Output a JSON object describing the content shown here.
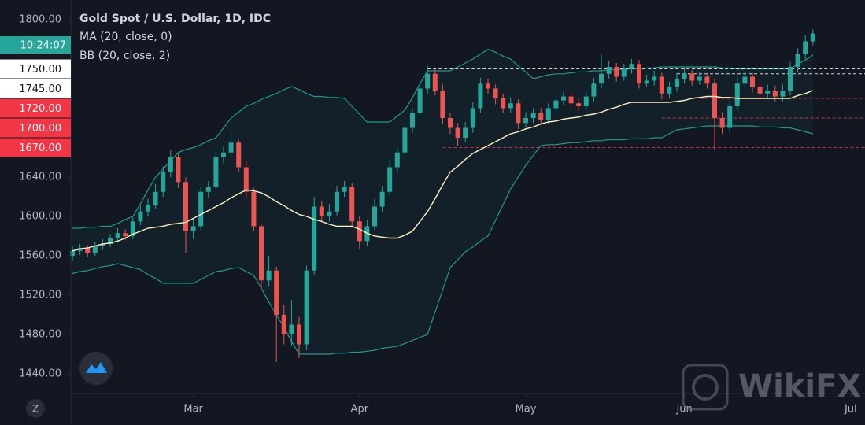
{
  "chart_data": {
    "type": "candlestick",
    "title": "Gold Spot / U.S. Dollar, 1D, IDC",
    "current_time": "10:24:07",
    "watermark": "WikiFX",
    "axis_corner": "Z",
    "up_color": "#26a69a",
    "down_color": "#ef5350",
    "ylim": [
      1420,
      1820
    ],
    "yticks": [
      {
        "value": 1440,
        "label": "1440.00"
      },
      {
        "value": 1480,
        "label": "1480.00"
      },
      {
        "value": 1520,
        "label": "1520.00"
      },
      {
        "value": 1560,
        "label": "1560.00"
      },
      {
        "value": 1600,
        "label": "1600.00"
      },
      {
        "value": 1640,
        "label": "1640.00"
      },
      {
        "value": 1800,
        "label": "1800.00"
      }
    ],
    "price_lines": [
      {
        "value": 1750,
        "label": "1750.00",
        "color": "#ffffff"
      },
      {
        "value": 1745,
        "label": "1745.00",
        "color": "#ffffff"
      },
      {
        "value": 1720,
        "label": "1720.00",
        "color": "#f23645"
      },
      {
        "value": 1700,
        "label": "1700.00",
        "color": "#f23645"
      },
      {
        "value": 1670,
        "label": "1670.00",
        "color": "#f23645"
      }
    ],
    "categories": [
      null,
      null,
      null,
      null,
      null,
      null,
      null,
      null,
      null,
      null,
      null,
      null,
      null,
      null,
      null,
      null,
      "Mar",
      null,
      null,
      null,
      null,
      null,
      null,
      null,
      null,
      null,
      null,
      null,
      null,
      null,
      null,
      null,
      null,
      null,
      null,
      null,
      null,
      null,
      "Apr",
      null,
      null,
      null,
      null,
      null,
      null,
      null,
      null,
      null,
      null,
      null,
      null,
      null,
      null,
      null,
      null,
      null,
      null,
      null,
      null,
      null,
      "May",
      null,
      null,
      null,
      null,
      null,
      null,
      null,
      null,
      null,
      null,
      null,
      null,
      null,
      null,
      null,
      null,
      null,
      null,
      null,
      null,
      "Jun",
      null,
      null,
      null,
      null,
      null,
      null,
      null,
      null,
      null,
      null,
      null,
      null,
      null,
      null,
      null,
      null,
      null,
      null,
      null,
      null,
      null,
      "Jul"
    ],
    "open": [
      1560,
      1565,
      1568,
      1563,
      1570,
      1572,
      1578,
      1583,
      1580,
      1595,
      1605,
      1612,
      1625,
      1645,
      1660,
      1635,
      1585,
      1590,
      1625,
      1630,
      1660,
      1665,
      1675,
      1650,
      1625,
      1590,
      1535,
      1545,
      1500,
      1480,
      1490,
      1470,
      1545,
      1610,
      1600,
      1605,
      1625,
      1630,
      1595,
      1575,
      1590,
      1610,
      1625,
      1650,
      1665,
      1690,
      1705,
      1730,
      1745,
      1728,
      1700,
      1690,
      1680,
      1690,
      1710,
      1735,
      1730,
      1720,
      1710,
      1715,
      1695,
      1700,
      1705,
      1698,
      1710,
      1718,
      1722,
      1715,
      1712,
      1722,
      1735,
      1745,
      1752,
      1742,
      1750,
      1755,
      1735,
      1738,
      1742,
      1725,
      1732,
      1740,
      1745,
      1738,
      1742,
      1735,
      1700,
      1690,
      1712,
      1735,
      1742,
      1732,
      1725,
      1728,
      1722,
      1728,
      1752,
      1765,
      1778,
      null,
      null,
      null,
      null,
      null
    ],
    "high": [
      1570,
      1572,
      1571,
      1574,
      1577,
      1582,
      1588,
      1587,
      1599,
      1611,
      1618,
      1633,
      1651,
      1668,
      1664,
      1640,
      1598,
      1630,
      1636,
      1666,
      1671,
      1685,
      1678,
      1656,
      1629,
      1593,
      1560,
      1549,
      1510,
      1515,
      1498,
      1550,
      1620,
      1616,
      1613,
      1631,
      1636,
      1634,
      1600,
      1596,
      1618,
      1631,
      1658,
      1670,
      1696,
      1710,
      1736,
      1753,
      1750,
      1734,
      1705,
      1695,
      1696,
      1716,
      1741,
      1740,
      1734,
      1725,
      1721,
      1719,
      1706,
      1710,
      1710,
      1715,
      1723,
      1727,
      1726,
      1720,
      1727,
      1741,
      1765,
      1758,
      1756,
      1755,
      1760,
      1759,
      1744,
      1748,
      1746,
      1737,
      1746,
      1751,
      1749,
      1747,
      1746,
      1740,
      1706,
      1718,
      1743,
      1748,
      1746,
      1737,
      1734,
      1733,
      1734,
      1757,
      1771,
      1784,
      1790,
      null,
      null,
      null,
      null,
      null
    ],
    "low": [
      1555,
      1561,
      1559,
      1560,
      1566,
      1569,
      1574,
      1576,
      1577,
      1591,
      1600,
      1608,
      1620,
      1640,
      1629,
      1563,
      1577,
      1586,
      1619,
      1626,
      1654,
      1661,
      1645,
      1619,
      1585,
      1527,
      1529,
      1452,
      1470,
      1468,
      1456,
      1464,
      1540,
      1594,
      1595,
      1601,
      1620,
      1590,
      1567,
      1570,
      1586,
      1605,
      1621,
      1645,
      1660,
      1685,
      1701,
      1725,
      1723,
      1694,
      1684,
      1672,
      1675,
      1685,
      1705,
      1724,
      1714,
      1705,
      1705,
      1689,
      1690,
      1695,
      1693,
      1694,
      1705,
      1713,
      1710,
      1707,
      1708,
      1717,
      1730,
      1740,
      1737,
      1738,
      1745,
      1730,
      1731,
      1733,
      1719,
      1720,
      1727,
      1735,
      1733,
      1734,
      1730,
      1668,
      1684,
      1685,
      1707,
      1730,
      1726,
      1720,
      1720,
      1717,
      1717,
      1723,
      1747,
      1760,
      1774,
      null,
      null,
      null,
      null,
      null
    ],
    "close": [
      1565,
      1568,
      1563,
      1570,
      1572,
      1578,
      1583,
      1580,
      1595,
      1605,
      1612,
      1625,
      1645,
      1660,
      1635,
      1585,
      1590,
      1625,
      1630,
      1660,
      1665,
      1675,
      1650,
      1625,
      1590,
      1535,
      1545,
      1500,
      1480,
      1490,
      1470,
      1545,
      1610,
      1600,
      1605,
      1625,
      1630,
      1595,
      1575,
      1590,
      1610,
      1625,
      1650,
      1665,
      1690,
      1705,
      1730,
      1745,
      1728,
      1700,
      1690,
      1680,
      1690,
      1710,
      1735,
      1730,
      1720,
      1710,
      1715,
      1695,
      1700,
      1705,
      1698,
      1710,
      1718,
      1722,
      1715,
      1712,
      1722,
      1735,
      1745,
      1752,
      1742,
      1750,
      1755,
      1735,
      1738,
      1742,
      1725,
      1732,
      1740,
      1745,
      1738,
      1742,
      1735,
      1700,
      1690,
      1712,
      1735,
      1742,
      1732,
      1725,
      1728,
      1722,
      1728,
      1752,
      1765,
      1778,
      1786,
      null,
      null,
      null,
      null,
      null
    ],
    "indicators": [
      {
        "name": "MA (20, close, 0)",
        "color": "#fff0c0",
        "values": [
          1565,
          1567,
          1568,
          1570,
          1572,
          1573,
          1575,
          1578,
          1582,
          1585,
          1588,
          1589,
          1590,
          1592,
          1593,
          1594,
          1598,
          1602,
          1606,
          1610,
          1614,
          1619,
          1623,
          1627,
          1626,
          1624,
          1620,
          1615,
          1611,
          1606,
          1602,
          1600,
          1597,
          1595,
          1592,
          1590,
          1590,
          1590,
          1587,
          1583,
          1580,
          1579,
          1578,
          1578,
          1581,
          1585,
          1595,
          1605,
          1618,
          1632,
          1645,
          1651,
          1658,
          1664,
          1668,
          1672,
          1676,
          1680,
          1684,
          1686,
          1689,
          1691,
          1694,
          1696,
          1697,
          1699,
          1700,
          1701,
          1703,
          1704,
          1706,
          1709,
          1711,
          1714,
          1716,
          1716,
          1716,
          1716,
          1716,
          1716,
          1717,
          1718,
          1720,
          1721,
          1722,
          1722,
          1721,
          1721,
          1720,
          1720,
          1720,
          1720,
          1720,
          1720,
          1720,
          1720,
          1723,
          1725,
          1728,
          null,
          null,
          null,
          null,
          null
        ]
      },
      {
        "name": "BB (20, close, 2)",
        "color": "#22988c",
        "upper": [
          1588,
          1588,
          1589,
          1589,
          1590,
          1590,
          1593,
          1597,
          1600,
          1613,
          1627,
          1640,
          1648,
          1657,
          1665,
          1668,
          1670,
          1673,
          1677,
          1680,
          1690,
          1700,
          1706,
          1712,
          1715,
          1719,
          1722,
          1725,
          1729,
          1732,
          1729,
          1725,
          1722,
          1722,
          1721,
          1721,
          1720,
          1712,
          1704,
          1696,
          1696,
          1696,
          1696,
          1702,
          1708,
          1721,
          1735,
          1748,
          1748,
          1748,
          1748,
          1752,
          1756,
          1760,
          1765,
          1770,
          1767,
          1763,
          1760,
          1753,
          1747,
          1740,
          1742,
          1744,
          1745,
          1745,
          1746,
          1747,
          1747,
          1748,
          1748,
          1749,
          1749,
          1750,
          1750,
          1750,
          1751,
          1751,
          1752,
          1752,
          1752,
          1752,
          1752,
          1752,
          1752,
          1752,
          1751,
          1751,
          1750,
          1750,
          1750,
          1750,
          1750,
          1750,
          1750,
          1750,
          1755,
          1759,
          1764,
          null,
          null,
          null,
          null,
          null
        ],
        "lower": [
          1542,
          1544,
          1545,
          1547,
          1549,
          1550,
          1552,
          1550,
          1548,
          1546,
          1541,
          1537,
          1532,
          1532,
          1532,
          1532,
          1532,
          1536,
          1540,
          1544,
          1545,
          1547,
          1548,
          1544,
          1540,
          1527,
          1513,
          1500,
          1487,
          1473,
          1460,
          1460,
          1460,
          1460,
          1460,
          1461,
          1461,
          1462,
          1462,
          1463,
          1464,
          1466,
          1467,
          1468,
          1471,
          1474,
          1477,
          1480,
          1503,
          1525,
          1548,
          1556,
          1564,
          1569,
          1575,
          1580,
          1596,
          1612,
          1628,
          1640,
          1652,
          1662,
          1672,
          1673,
          1673,
          1674,
          1675,
          1675,
          1676,
          1677,
          1677,
          1678,
          1678,
          1678,
          1679,
          1679,
          1679,
          1680,
          1680,
          1684,
          1688,
          1689,
          1690,
          1691,
          1692,
          1692,
          1692,
          1692,
          1692,
          1692,
          1692,
          1691,
          1691,
          1691,
          1690,
          1690,
          1688,
          1686,
          1684,
          null,
          null,
          null,
          null,
          null
        ]
      }
    ]
  }
}
